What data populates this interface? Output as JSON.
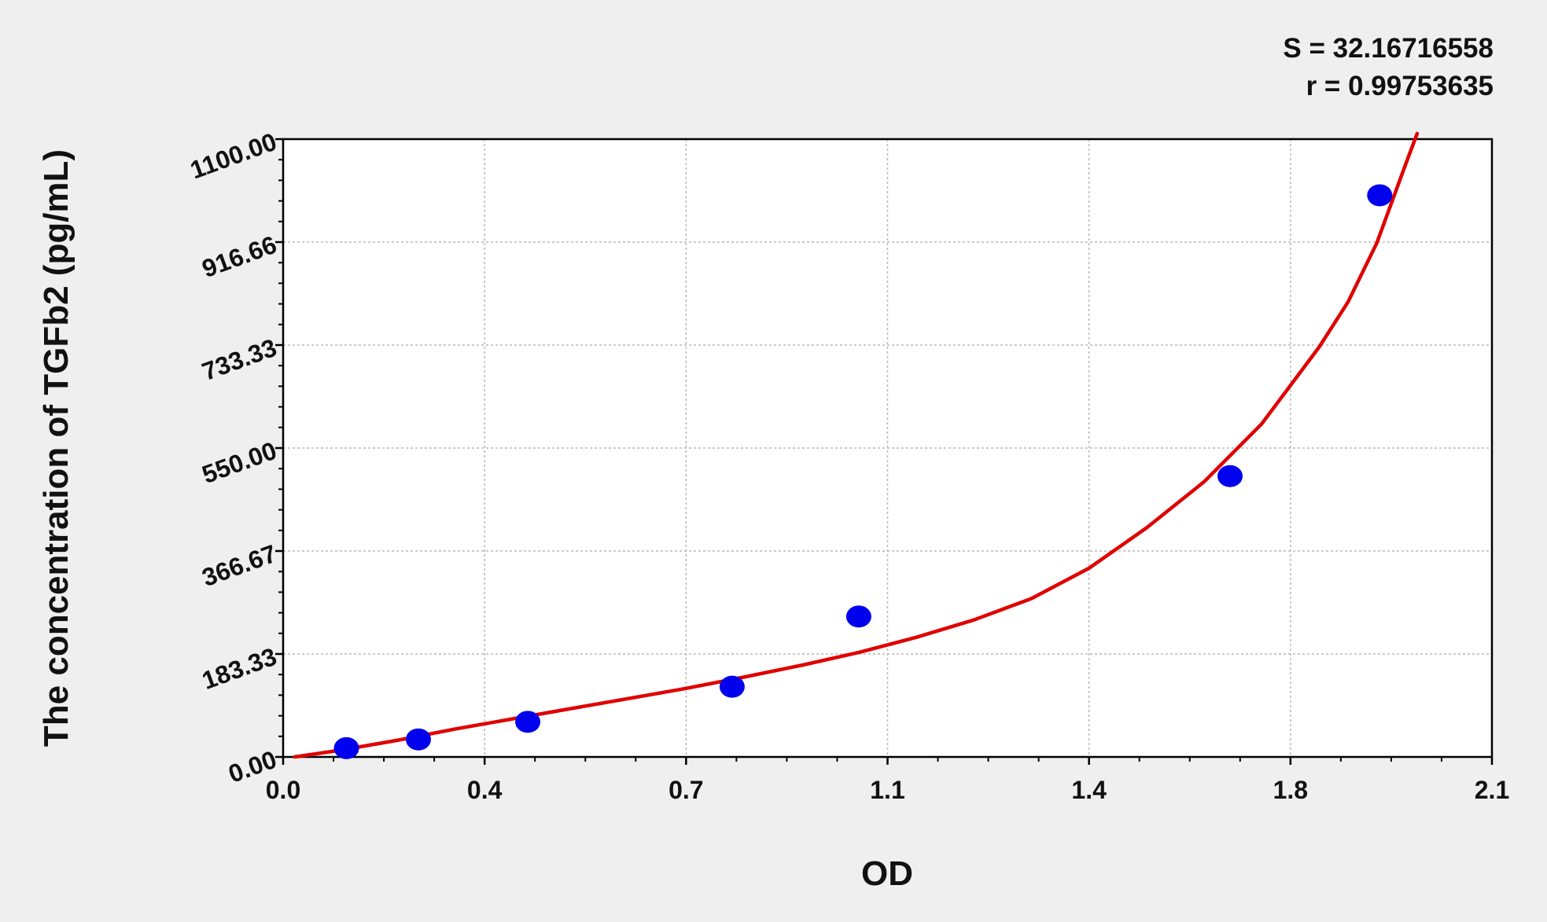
{
  "chart_data": {
    "type": "scatter",
    "title": "",
    "xlabel": "OD",
    "ylabel": "The concentration of TGFb2 (pg/mL)",
    "xlim": [
      0.0,
      2.1
    ],
    "ylim": [
      0.0,
      1100.0
    ],
    "x_ticks": [
      "0.0",
      "0.4",
      "0.7",
      "1.1",
      "1.4",
      "1.8",
      "2.1"
    ],
    "y_ticks": [
      "0.00",
      "183.33",
      "366.67",
      "550.00",
      "733.33",
      "916.66",
      "1100.00"
    ],
    "grid": true,
    "annotations": {
      "s_value": "S = 32.16716558",
      "r_value": "r = 0.99753635"
    },
    "series": [
      {
        "kind": "points",
        "color": "#0000ee",
        "points": [
          {
            "x": 0.11,
            "y": 15.6
          },
          {
            "x": 0.235,
            "y": 31.2
          },
          {
            "x": 0.425,
            "y": 62.5
          },
          {
            "x": 0.78,
            "y": 125
          },
          {
            "x": 1.0,
            "y": 250
          },
          {
            "x": 1.645,
            "y": 500
          },
          {
            "x": 1.905,
            "y": 1000
          }
        ]
      },
      {
        "kind": "fit-curve",
        "color": "#e00000",
        "points": [
          {
            "x": 0.02,
            "y": 0
          },
          {
            "x": 0.1,
            "y": 12
          },
          {
            "x": 0.2,
            "y": 30
          },
          {
            "x": 0.3,
            "y": 50
          },
          {
            "x": 0.4,
            "y": 68
          },
          {
            "x": 0.5,
            "y": 86
          },
          {
            "x": 0.6,
            "y": 104
          },
          {
            "x": 0.7,
            "y": 122
          },
          {
            "x": 0.8,
            "y": 142
          },
          {
            "x": 0.9,
            "y": 163
          },
          {
            "x": 1.0,
            "y": 186
          },
          {
            "x": 1.1,
            "y": 213
          },
          {
            "x": 1.2,
            "y": 244
          },
          {
            "x": 1.3,
            "y": 282
          },
          {
            "x": 1.4,
            "y": 336
          },
          {
            "x": 1.5,
            "y": 408
          },
          {
            "x": 1.6,
            "y": 490
          },
          {
            "x": 1.7,
            "y": 593
          },
          {
            "x": 1.8,
            "y": 730
          },
          {
            "x": 1.85,
            "y": 810
          },
          {
            "x": 1.9,
            "y": 915
          },
          {
            "x": 1.95,
            "y": 1055
          },
          {
            "x": 1.97,
            "y": 1110
          }
        ]
      }
    ]
  }
}
